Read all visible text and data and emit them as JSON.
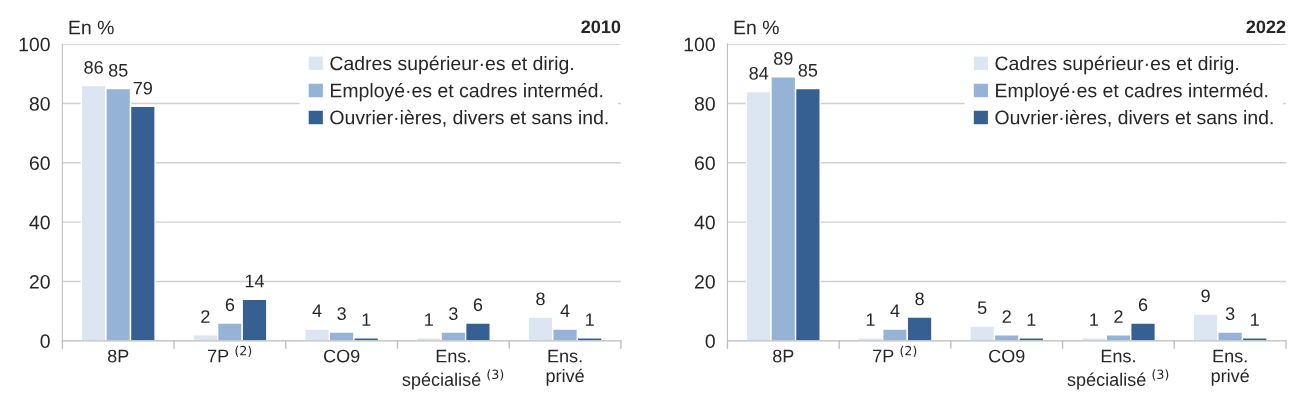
{
  "chart_data": [
    {
      "type": "bar",
      "title": "2010",
      "ylabel": "En %",
      "categories": [
        "8P",
        "7P $^{(2)}$",
        "CO9",
        "Ens.\nspécialisé $^{(3)}$",
        "Ens.\nprivé"
      ],
      "ylim": [
        0,
        100
      ],
      "yticks": [
        0,
        20,
        40,
        60,
        80,
        100
      ],
      "grid": "y",
      "legend": "top right",
      "data_labels": true,
      "series": [
        {
          "name": "Cadres supérieur·es et dirig.",
          "color": "#dce6f2",
          "values": [
            86,
            2,
            4,
            1,
            8
          ]
        },
        {
          "name": "Employé·es et cadres interméd.",
          "color": "#95b3d7",
          "values": [
            85,
            6,
            3,
            3,
            4
          ]
        },
        {
          "name": "Ouvrier·ières, divers et sans ind.",
          "color": "#376092",
          "values": [
            79,
            14,
            1,
            6,
            1
          ]
        }
      ]
    },
    {
      "type": "bar",
      "title": "2022",
      "ylabel": "En %",
      "categories": [
        "8P",
        "7P $^{(2)}$",
        "CO9",
        "Ens.\nspécialisé $^{(3)}$",
        "Ens.\nprivé"
      ],
      "ylim": [
        0,
        100
      ],
      "yticks": [
        0,
        20,
        40,
        60,
        80,
        100
      ],
      "grid": "y",
      "legend": "top right",
      "data_labels": true,
      "series": [
        {
          "name": "Cadres supérieur·es et dirig.",
          "color": "#dce6f2",
          "values": [
            84,
            1,
            5,
            1,
            9
          ]
        },
        {
          "name": "Employé·es et cadres interméd.",
          "color": "#95b3d7",
          "values": [
            89,
            4,
            2,
            2,
            3
          ]
        },
        {
          "name": "Ouvrier·ières, divers et sans ind.",
          "color": "#376092",
          "values": [
            85,
            8,
            1,
            6,
            1
          ]
        }
      ]
    }
  ]
}
